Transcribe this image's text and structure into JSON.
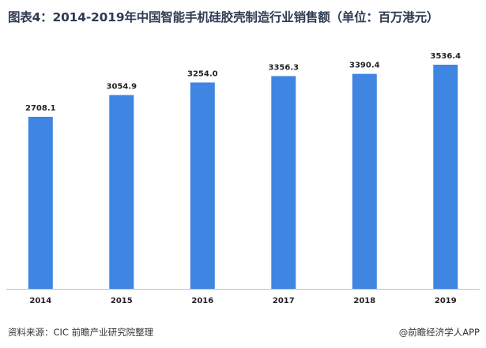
{
  "header": {
    "title": "图表4：2014-2019年中国智能手机硅胶壳制造行业销售额（单位：百万港元）"
  },
  "footer": {
    "source": "资料来源：CIC 前瞻产业研究院整理",
    "credit": "@前瞻经济学人APP"
  },
  "colors": {
    "bar": "#3f86e3",
    "axis": "#bfbfbf",
    "title": "#2f3b52"
  },
  "chart_data": {
    "type": "bar",
    "title": "图表4：2014-2019年中国智能手机硅胶壳制造行业销售额（单位：百万港元）",
    "categories": [
      "2014",
      "2015",
      "2016",
      "2017",
      "2018",
      "2019"
    ],
    "values": [
      2708.1,
      3054.9,
      3254.0,
      3356.3,
      3390.4,
      3536.4
    ],
    "value_labels": [
      "2708.1",
      "3054.9",
      "3254.0",
      "3356.3",
      "3390.4",
      "3536.4"
    ],
    "xlabel": "",
    "ylabel": "",
    "ylim": [
      1000,
      3800
    ],
    "grid": false,
    "legend": "none"
  }
}
